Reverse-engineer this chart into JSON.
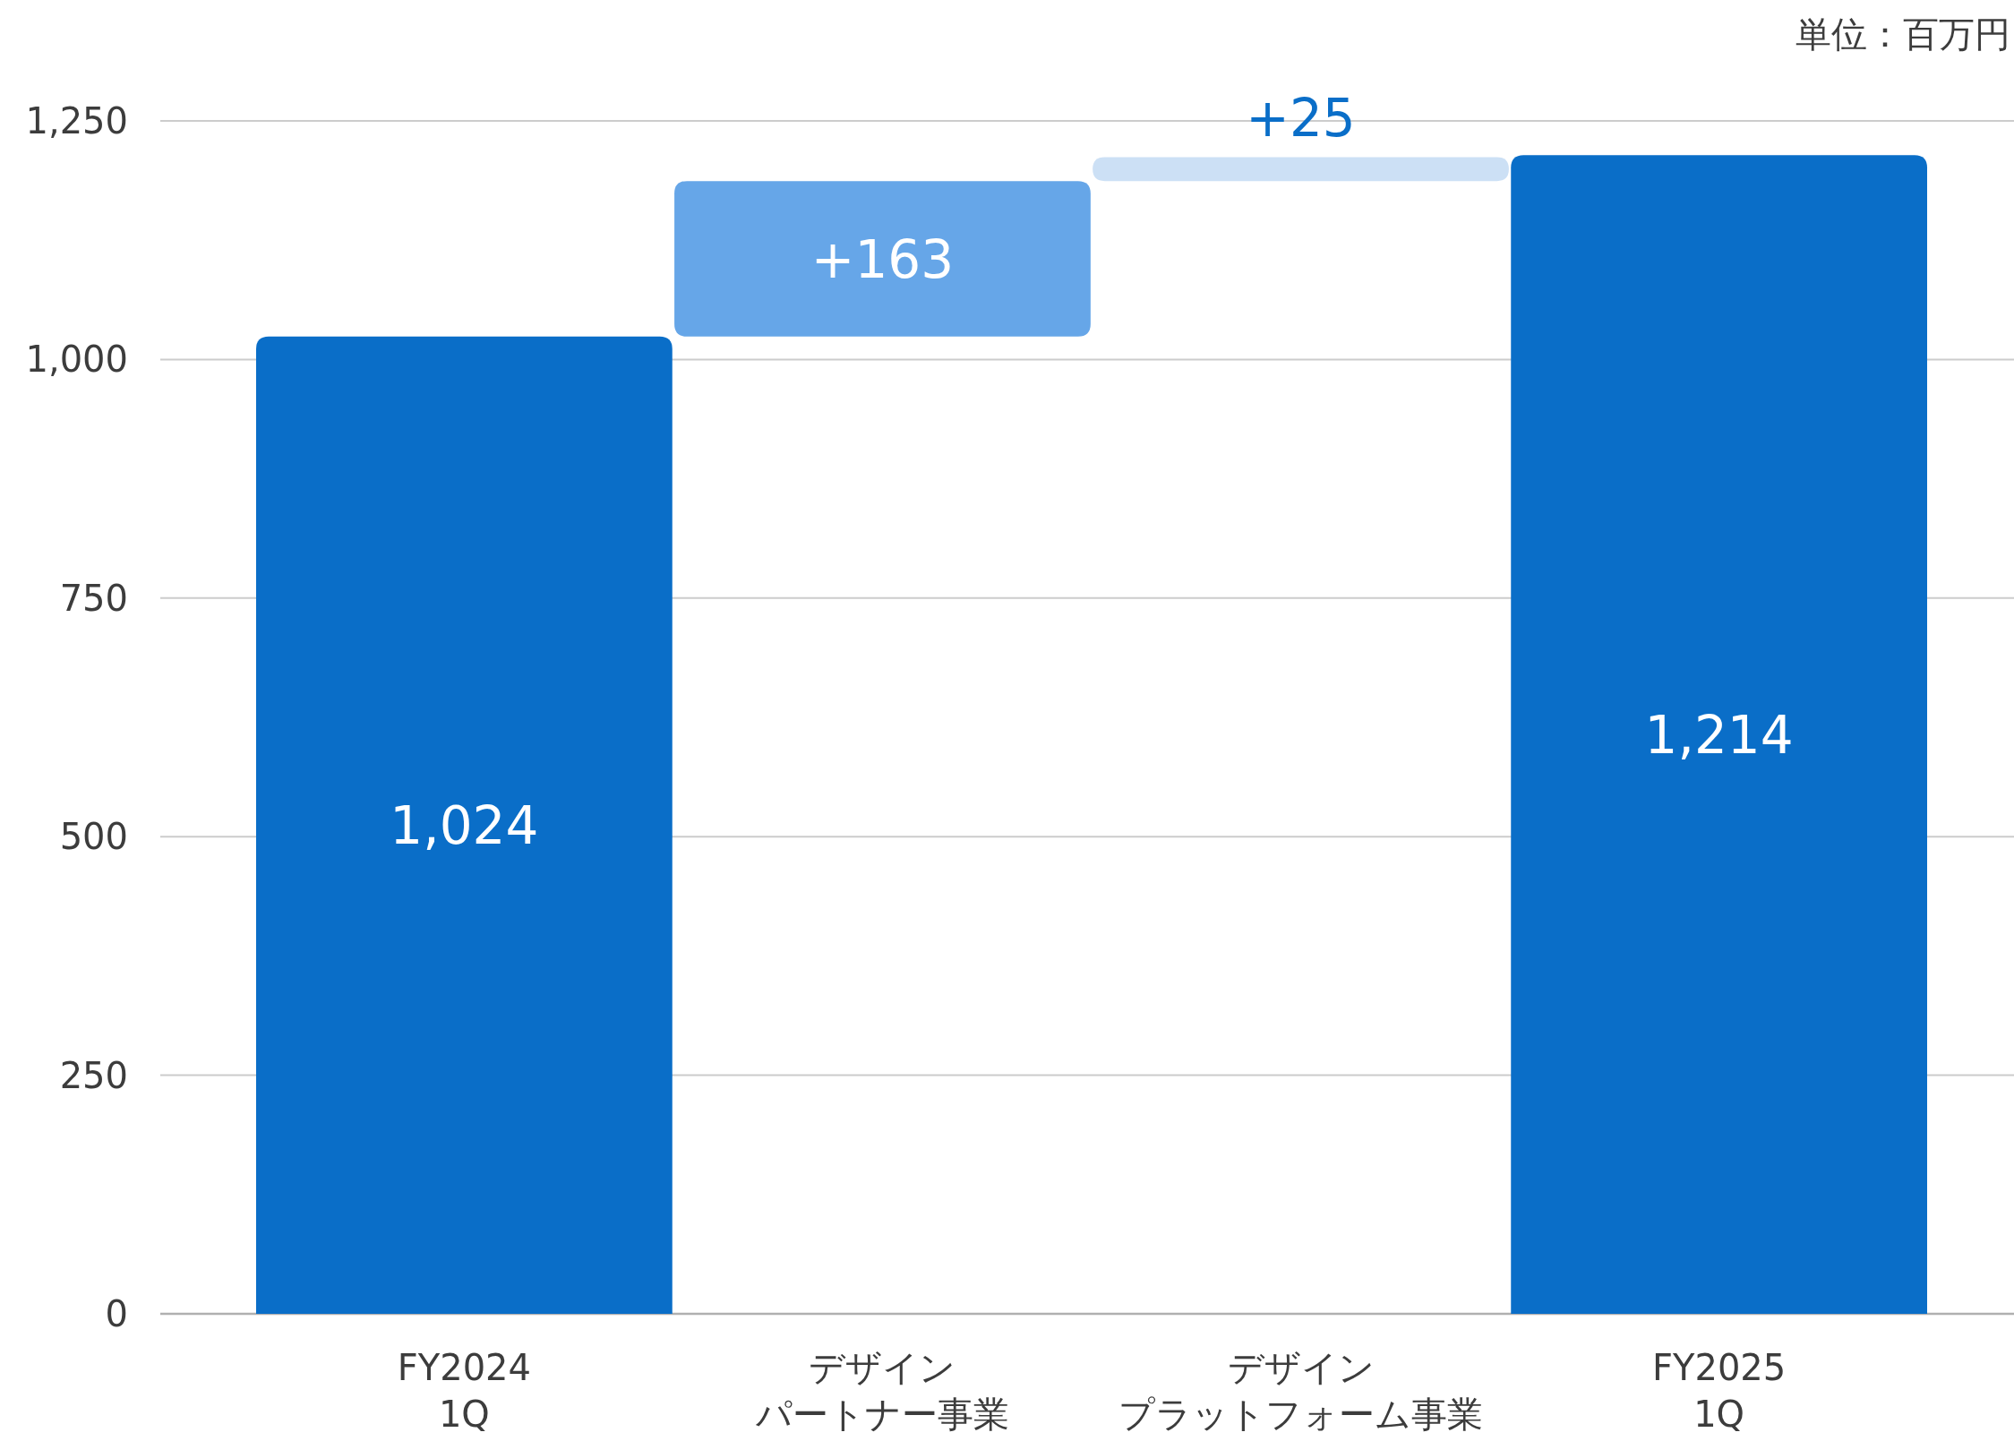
{
  "chart_data": {
    "type": "bar",
    "categories": [
      "FY2024 1Q",
      "デザインパートナー事業",
      "デザインプラットフォーム事業",
      "FY2025 1Q"
    ],
    "values": [
      1024,
      163,
      25,
      1214
    ],
    "base": [
      0,
      1024,
      1187,
      0
    ],
    "colors": [
      "#0a6ec8",
      "#66a6e8",
      "#cce0f5",
      "#0a6ec8"
    ],
    "value_labels": [
      "1,024",
      "+163",
      "+25",
      "1,214"
    ],
    "ylim": [
      0,
      1250
    ],
    "yticks": [
      0,
      250,
      500,
      750,
      {
        "value": 1000,
        "label": "1,000"
      },
      {
        "value": 1250,
        "label": "1,250"
      }
    ],
    "grid": "y",
    "annotations": [
      "単位：百万円"
    ]
  }
}
